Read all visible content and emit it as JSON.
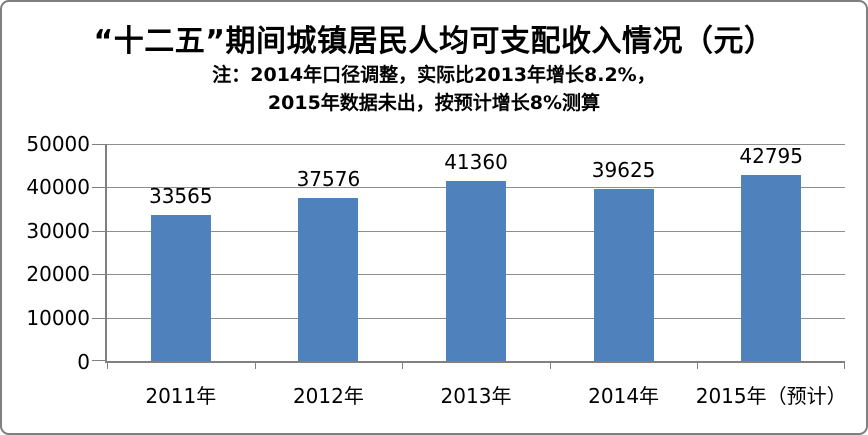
{
  "chart_data": {
    "type": "bar",
    "title": "“十二五”期间城镇居民人均可支配收入情况（元）",
    "subtitle_lines": [
      "注：2014年口径调整，实际比2013年增长8.2%，",
      "2015年数据未出，按预计增长8%测算"
    ],
    "categories": [
      "2011年",
      "2012年",
      "2013年",
      "2014年",
      "2015年（预计）"
    ],
    "values": [
      33565,
      37576,
      41360,
      39625,
      42795
    ],
    "ylim": [
      0,
      50000
    ],
    "yticks": [
      0,
      10000,
      20000,
      30000,
      40000,
      50000
    ],
    "grid": true,
    "legend": "none",
    "bar_color": "#4F81BD",
    "gridline_color": "#8e8e8e",
    "axis_color": "#808080",
    "text_color": "#000000"
  }
}
